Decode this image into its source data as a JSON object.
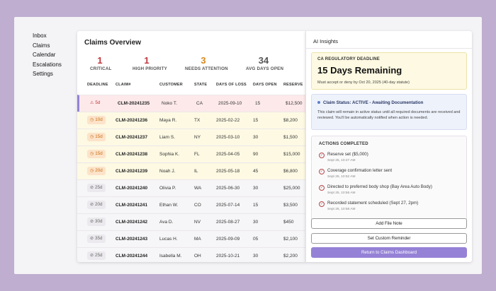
{
  "nav": [
    "Inbox",
    "Claims",
    "Calendar",
    "Escalations",
    "Settings"
  ],
  "main": {
    "title": "Claims Overview",
    "stats": [
      {
        "value": "1",
        "label": "CRITICAL",
        "color": "#c0363d"
      },
      {
        "value": "1",
        "label": "HIGH PRIORITY",
        "color": "#c0363d"
      },
      {
        "value": "3",
        "label": "NEEDS ATTENTION",
        "color": "#d58a1f"
      },
      {
        "value": "34",
        "label": "AVG DAYS OPEN",
        "color": "#555555"
      }
    ],
    "columns": [
      "DEADLINE",
      "CLAIM#",
      "CUSTOMER",
      "STATE",
      "DAYS OF LOSS",
      "DAYS OPEN",
      "RESERVE"
    ],
    "rows": [
      {
        "deadline": "5d",
        "level": "critical",
        "claim": "CLM-20241235",
        "customer": "Noko T.",
        "state": "CA",
        "loss": "2025-09-10",
        "open": "15",
        "reserve": "$12,500"
      },
      {
        "deadline": "10d",
        "level": "warn",
        "claim": "CLM-20241236",
        "customer": "Maya R.",
        "state": "TX",
        "loss": "2025-02-22",
        "open": "15",
        "reserve": "$8,200"
      },
      {
        "deadline": "15d",
        "level": "warn",
        "claim": "CLM-20241237",
        "customer": "Liam S.",
        "state": "NY",
        "loss": "2025-03-10",
        "open": "30",
        "reserve": "$1,500"
      },
      {
        "deadline": "15d",
        "level": "warn",
        "claim": "CLM-20241238",
        "customer": "Sophia K.",
        "state": "FL",
        "loss": "2025-04-05",
        "open": "90",
        "reserve": "$15,000"
      },
      {
        "deadline": "20d",
        "level": "warn",
        "claim": "CLM-20241239",
        "customer": "Noah J.",
        "state": "IL",
        "loss": "2025-05-18",
        "open": "45",
        "reserve": "$6,800"
      },
      {
        "deadline": "25d",
        "level": "ok",
        "claim": "CLM-20241240",
        "customer": "Olivia P.",
        "state": "WA",
        "loss": "2025-06-30",
        "open": "30",
        "reserve": "$25,000"
      },
      {
        "deadline": "20d",
        "level": "ok",
        "claim": "CLM-20241241",
        "customer": "Ethan W.",
        "state": "CO",
        "loss": "2025-07-14",
        "open": "15",
        "reserve": "$3,500"
      },
      {
        "deadline": "30d",
        "level": "ok",
        "claim": "CLM-20241242",
        "customer": "Ava D.",
        "state": "NV",
        "loss": "2025-08-27",
        "open": "30",
        "reserve": "$450"
      },
      {
        "deadline": "35d",
        "level": "ok",
        "claim": "CLM-20241243",
        "customer": "Lucas H.",
        "state": "MA",
        "loss": "2025-09-09",
        "open": "05",
        "reserve": "$2,100"
      },
      {
        "deadline": "25d",
        "level": "ok",
        "claim": "CLM-20241244",
        "customer": "Isabella M.",
        "state": "OH",
        "loss": "2025-10-21",
        "open": "30",
        "reserve": "$2,200"
      }
    ]
  },
  "panel": {
    "title": "AI Insights",
    "deadline": {
      "label": "CA REGULATORY DEADLINE",
      "title": "15 Days Remaining",
      "sub": "Must accept or deny by Oct 20, 2025 (40-day statute)"
    },
    "status": {
      "head": "Claim Status: ACTIVE - Awaiting Documentation",
      "body": "This claim will remain in active status until all required documents are received and reviewed. You'll be automatically notified when action is needed."
    },
    "actions_head": "ACTIONS COMPLETED",
    "actions": [
      {
        "text": "Reserve set ($5,000)",
        "time": "Sept 25, 10:47 AM"
      },
      {
        "text": "Coverage confirmation letter sent",
        "time": "Sept 25, 10:52 AM"
      },
      {
        "text": "Directed to preferred body shop (Bay Area Auto Body)",
        "time": "Sept 25, 10:56 AM"
      },
      {
        "text": "Recorded statement scheduled (Sept 27, 2pm)",
        "time": "Sept 25, 10:58 AM"
      }
    ],
    "buttons": {
      "note": "Add File Note",
      "reminder": "Set Custom Reminder",
      "back": "Return to Claims Dashboard"
    }
  },
  "colors": {
    "critical_bg": "#fde9ea",
    "critical_text": "#c0363d",
    "warn_row_bg": "#fdf9e3",
    "warn_badge_bg": "#fce3c9",
    "warn_text": "#c76e14",
    "ok_row_bg": "#f6f5f7",
    "ok_badge_bg": "#ebe9ed",
    "ok_text": "#666666",
    "accent": "#9582d6"
  }
}
